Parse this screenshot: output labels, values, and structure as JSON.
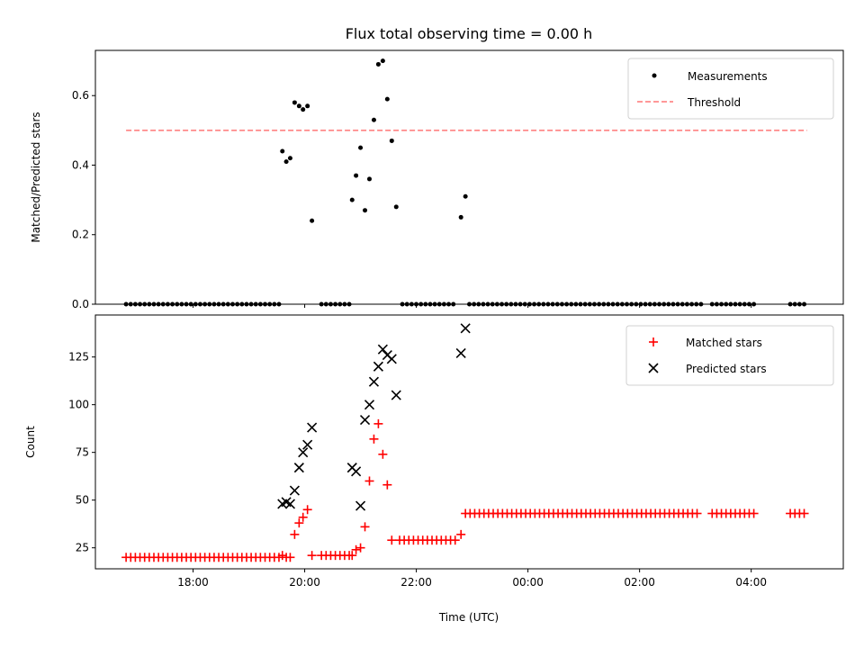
{
  "chart_data": [
    {
      "type": "scatter",
      "title": "Flux total observing time = 0.00 h",
      "xlabel": "",
      "ylabel": "Matched/Predicted stars",
      "xlim": [
        16.25,
        29.65
      ],
      "ylim": [
        0,
        0.73
      ],
      "y_ticks": [
        0.0,
        0.2,
        0.4,
        0.6
      ],
      "y_tick_labels": [
        "0.0",
        "0.2",
        "0.4",
        "0.6"
      ],
      "x_ticks": [
        18,
        20,
        22,
        24,
        26,
        28
      ],
      "grid": false,
      "legend_position": "top-right",
      "series": [
        {
          "name": "Measurements",
          "marker": "dot",
          "color": "#000000",
          "x": [
            19.6,
            19.67,
            19.74,
            19.82,
            19.9,
            19.97,
            20.05,
            20.13,
            20.85,
            20.92,
            21.0,
            21.08,
            21.16,
            21.24,
            21.32,
            21.4,
            21.48,
            21.56,
            21.64,
            22.8,
            22.88
          ],
          "y": [
            0.44,
            0.41,
            0.42,
            0.58,
            0.57,
            0.56,
            0.57,
            0.24,
            0.3,
            0.37,
            0.45,
            0.27,
            0.36,
            0.53,
            0.69,
            0.7,
            0.59,
            0.47,
            0.28,
            0.25,
            0.31
          ]
        },
        {
          "name": "",
          "marker": "dot",
          "color": "#000000",
          "x_ranges": [
            [
              16.8,
              19.55,
              0.083
            ],
            [
              20.3,
              20.8,
              0.083
            ],
            [
              21.75,
              22.7,
              0.083
            ],
            [
              22.95,
              27.1,
              0.083
            ],
            [
              27.3,
              28.1,
              0.083
            ],
            [
              28.7,
              29.0,
              0.083
            ]
          ],
          "y_const": 0.0
        },
        {
          "name": "Threshold",
          "type": "line",
          "dash": "dashed",
          "color": "#ff7777",
          "x": [
            16.8,
            29.0
          ],
          "y": [
            0.5,
            0.5
          ]
        }
      ]
    },
    {
      "type": "scatter",
      "title": "",
      "xlabel": "Time (UTC)",
      "ylabel": "Count",
      "xlim": [
        16.25,
        29.65
      ],
      "ylim": [
        14,
        147
      ],
      "y_ticks": [
        25,
        50,
        75,
        100,
        125
      ],
      "y_tick_labels": [
        "25",
        "50",
        "75",
        "100",
        "125"
      ],
      "x_ticks": [
        18,
        20,
        22,
        24,
        26,
        28
      ],
      "x_tick_labels": [
        "18:00",
        "20:00",
        "22:00",
        "00:00",
        "02:00",
        "04:00"
      ],
      "grid": false,
      "legend_position": "top-right",
      "series": [
        {
          "name": "Matched stars",
          "marker": "plus",
          "color": "#ff0000",
          "x": [
            19.6,
            19.67,
            19.74,
            19.82,
            19.9,
            19.97,
            20.05,
            20.13,
            20.85,
            20.92,
            21.0,
            21.08,
            21.16,
            21.24,
            21.32,
            21.4,
            21.48,
            21.56,
            22.8
          ],
          "y": [
            21,
            20,
            20,
            32,
            38,
            41,
            45,
            21,
            21,
            24,
            25,
            36,
            60,
            82,
            90,
            74,
            58,
            29,
            32
          ],
          "x_ranges": [
            [
              16.8,
              19.55,
              20,
              0.083
            ],
            [
              20.3,
              20.8,
              21,
              0.083
            ],
            [
              21.7,
              22.75,
              29,
              0.083
            ],
            [
              22.88,
              27.1,
              43,
              0.083
            ],
            [
              27.3,
              28.1,
              43,
              0.083
            ],
            [
              28.7,
              29.0,
              43,
              0.083
            ]
          ]
        },
        {
          "name": "Predicted stars",
          "marker": "x",
          "color": "#000000",
          "x": [
            19.6,
            19.67,
            19.74,
            19.82,
            19.9,
            19.97,
            20.05,
            20.13,
            20.85,
            20.92,
            21.0,
            21.08,
            21.16,
            21.24,
            21.32,
            21.4,
            21.48,
            21.56,
            21.64,
            22.8,
            22.88
          ],
          "y": [
            48,
            49,
            48,
            55,
            67,
            75,
            79,
            88,
            67,
            65,
            47,
            92,
            100,
            112,
            120,
            129,
            126,
            124,
            105,
            127,
            140
          ]
        }
      ]
    }
  ]
}
